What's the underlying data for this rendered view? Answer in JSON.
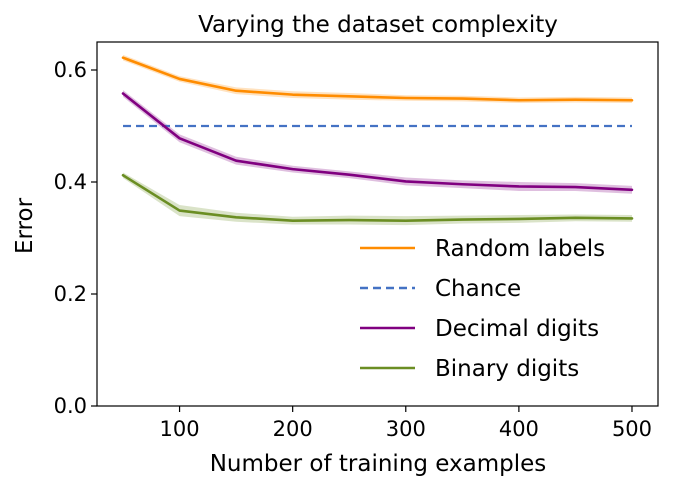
{
  "chart_data": {
    "type": "line",
    "title": "Varying the dataset complexity",
    "xlabel": "Number of training examples",
    "ylabel": "Error",
    "xlim": [
      27,
      523
    ],
    "ylim": [
      0.0,
      0.65
    ],
    "xticks": [
      100,
      200,
      300,
      400,
      500
    ],
    "yticks": [
      0.0,
      0.2,
      0.4,
      0.6
    ],
    "xtick_labels": [
      "100",
      "200",
      "300",
      "400",
      "500"
    ],
    "ytick_labels": [
      "0.0",
      "0.2",
      "0.4",
      "0.6"
    ],
    "grid": false,
    "legend_position": "lower-right",
    "x": [
      50,
      100,
      150,
      200,
      250,
      300,
      350,
      400,
      450,
      500
    ],
    "series": [
      {
        "name": "Random labels",
        "color": "#ff8c00",
        "style": "solid",
        "values": [
          0.622,
          0.584,
          0.563,
          0.556,
          0.553,
          0.55,
          0.549,
          0.546,
          0.547,
          0.546
        ],
        "band": [
          0.005,
          0.005,
          0.006,
          0.006,
          0.006,
          0.005,
          0.005,
          0.005,
          0.005,
          0.005
        ]
      },
      {
        "name": "Chance",
        "color": "#4472c4",
        "style": "dashed",
        "values": [
          0.5,
          0.5,
          0.5,
          0.5,
          0.5,
          0.5,
          0.5,
          0.5,
          0.5,
          0.5
        ],
        "band": null
      },
      {
        "name": "Decimal digits",
        "color": "#800080",
        "style": "solid",
        "values": [
          0.558,
          0.478,
          0.438,
          0.423,
          0.413,
          0.401,
          0.396,
          0.392,
          0.391,
          0.386
        ],
        "band": [
          0.006,
          0.007,
          0.007,
          0.006,
          0.006,
          0.007,
          0.007,
          0.008,
          0.007,
          0.007
        ]
      },
      {
        "name": "Binary digits",
        "color": "#6b8e23",
        "style": "solid",
        "values": [
          0.412,
          0.349,
          0.337,
          0.331,
          0.332,
          0.331,
          0.333,
          0.334,
          0.336,
          0.335
        ],
        "band": [
          0.005,
          0.01,
          0.008,
          0.007,
          0.008,
          0.008,
          0.007,
          0.007,
          0.006,
          0.006
        ]
      }
    ]
  }
}
